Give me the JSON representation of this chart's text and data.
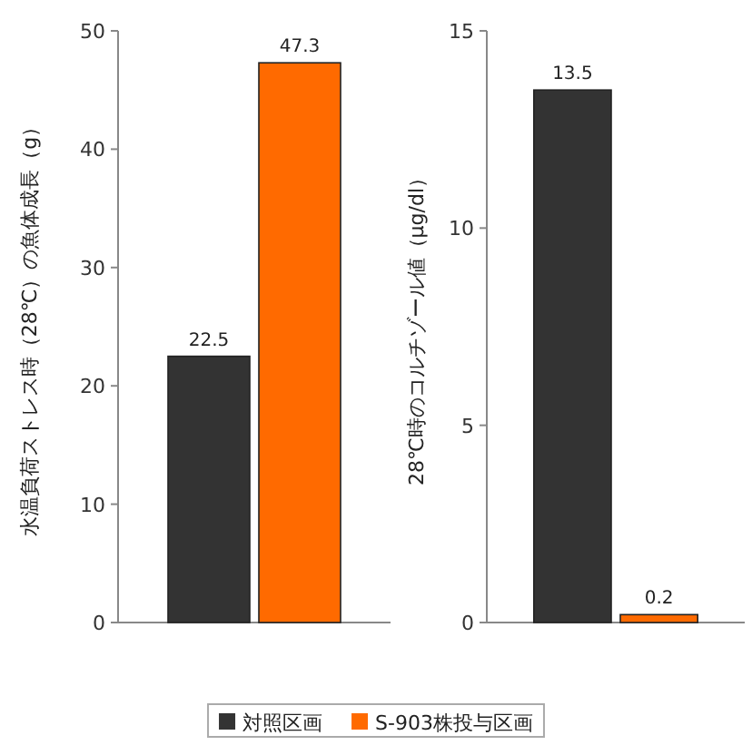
{
  "chart_data": [
    {
      "type": "bar",
      "ylabel": "水温負荷ストレス時（28℃）の魚体成長（g）",
      "categories": [
        null
      ],
      "series": [
        {
          "name": "対照区画",
          "color": "#333333",
          "values": [
            22.5
          ]
        },
        {
          "name": "S-903株投与区画",
          "color": "#ff6a00",
          "values": [
            47.3
          ]
        }
      ],
      "ylim": [
        0,
        50
      ],
      "yticks": [
        0,
        10,
        20,
        30,
        40,
        50
      ],
      "data_labels": true,
      "legend": "bottom"
    },
    {
      "type": "bar",
      "ylabel": "28℃時のコルチゾール値（μg/dl）",
      "categories": [
        null
      ],
      "series": [
        {
          "color": "#333333",
          "values": [
            13.5
          ]
        },
        {
          "color": "#ff6a00",
          "values": [
            0.2
          ]
        }
      ],
      "ylim": [
        0,
        15
      ],
      "yticks": [
        0,
        5,
        10,
        15
      ],
      "data_labels": true
    }
  ]
}
